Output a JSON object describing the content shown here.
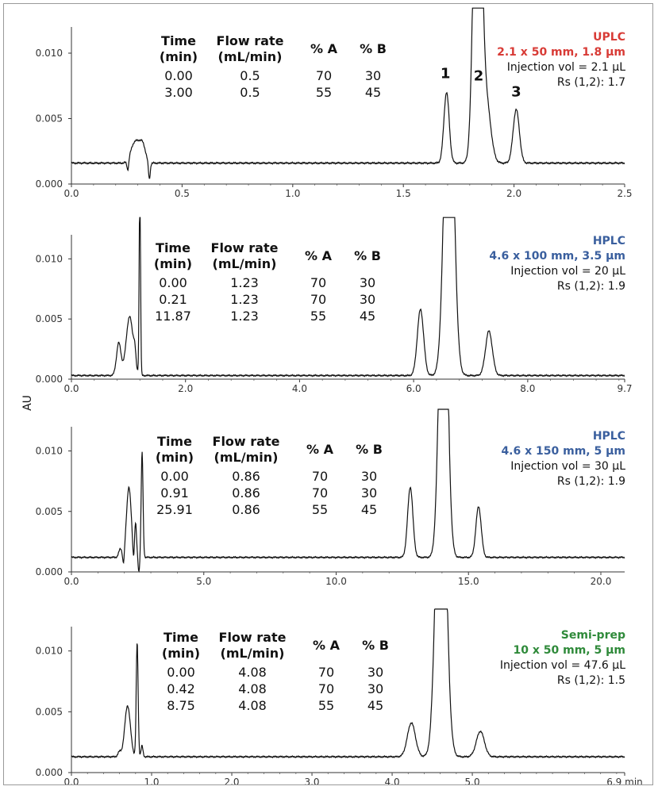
{
  "y_axis_label": "AU",
  "chart_data": [
    {
      "type": "line",
      "column_title": "UPLC",
      "column_spec": "2.1 x 50 mm, 1.8 µm",
      "title_color": "#d83b36",
      "injection": "Injection vol = 2.1 µL",
      "resolution": "Rs (1,2): 1.7",
      "xlim": [
        0,
        2.5
      ],
      "ylim": [
        0,
        0.012
      ],
      "xticks": [
        0,
        0.5,
        1,
        1.5,
        2,
        2.5
      ],
      "xtick_labels": [
        "0.0",
        "0.5",
        "1.0",
        "1.5",
        "2.0",
        "2.5"
      ],
      "yticks": [
        0,
        0.005,
        0.01
      ],
      "ytick_labels": [
        "0.000",
        "0.005",
        "0.010"
      ],
      "gradient_headers": [
        [
          "Time",
          "(min)"
        ],
        [
          "Flow rate",
          "(mL/min)"
        ],
        [
          "% A",
          ""
        ],
        [
          "% B",
          ""
        ]
      ],
      "gradient_rows": [
        [
          "0.00",
          "0.5",
          "70",
          "30"
        ],
        [
          "3.00",
          "0.5",
          "55",
          "45"
        ]
      ],
      "peak_labels": [
        {
          "text": "1",
          "x": 1.69,
          "y": 0.0081
        },
        {
          "text": "2",
          "x": 1.84,
          "y": 0.0079
        },
        {
          "text": "3",
          "x": 2.01,
          "y": 0.0067
        }
      ],
      "baseline": 0.0016,
      "peaks": [
        [
          0.28,
          0.0012,
          0.015
        ],
        [
          0.305,
          0.0012,
          0.015
        ],
        [
          0.325,
          0.001,
          0.012
        ],
        [
          1.695,
          0.0054,
          0.012
        ],
        [
          1.835,
          0.03,
          0.017
        ],
        [
          1.875,
          0.0045,
          0.02
        ],
        [
          2.01,
          0.0041,
          0.014
        ]
      ],
      "dips": [
        [
          0.255,
          -0.0008,
          0.004
        ],
        [
          0.352,
          -0.0013,
          0.004
        ]
      ]
    },
    {
      "type": "line",
      "column_title": "HPLC",
      "column_spec": "4.6 x 100 mm, 3.5 µm",
      "title_color": "#3a5f9e",
      "injection": "Injection vol = 20 µL",
      "resolution": "Rs (1,2): 1.9",
      "xlim": [
        0,
        9.7
      ],
      "ylim": [
        0,
        0.012
      ],
      "xticks": [
        0,
        2,
        4,
        6,
        8,
        9.7
      ],
      "xtick_labels": [
        "0.0",
        "2.0",
        "4.0",
        "6.0",
        "8.0",
        "9.7"
      ],
      "yticks": [
        0,
        0.005,
        0.01
      ],
      "ytick_labels": [
        "0.000",
        "0.005",
        "0.010"
      ],
      "gradient_headers": [
        [
          "Time",
          "(min)"
        ],
        [
          "Flow rate",
          "(mL/min)"
        ],
        [
          "% A",
          ""
        ],
        [
          "% B",
          ""
        ]
      ],
      "gradient_rows": [
        [
          "0.00",
          "1.23",
          "70",
          "30"
        ],
        [
          "0.21",
          "1.23",
          "70",
          "30"
        ],
        [
          "11.87",
          "1.23",
          "55",
          "45"
        ]
      ],
      "peak_labels": [],
      "baseline": 0.0003,
      "peaks": [
        [
          0.83,
          0.0027,
          0.04
        ],
        [
          1.02,
          0.0049,
          0.06
        ],
        [
          1.11,
          0.0012,
          0.02
        ],
        [
          1.2,
          0.016,
          0.012
        ],
        [
          6.12,
          0.0055,
          0.055
        ],
        [
          6.62,
          0.03,
          0.08
        ],
        [
          7.32,
          0.0037,
          0.06
        ]
      ],
      "dips": []
    },
    {
      "type": "line",
      "column_title": "HPLC",
      "column_spec": "4.6 x 150 mm, 5 µm",
      "title_color": "#3a5f9e",
      "injection": "Injection vol = 30 µL",
      "resolution": "Rs (1,2): 1.9",
      "xlim": [
        0,
        20.9
      ],
      "ylim": [
        0,
        0.012
      ],
      "xticks": [
        0,
        5,
        10,
        15,
        20
      ],
      "xtick_labels": [
        "0.0",
        "5.0",
        "10.0",
        "15.0",
        "20.0"
      ],
      "yticks": [
        0,
        0.005,
        0.01
      ],
      "ytick_labels": [
        "0.000",
        "0.005",
        "0.010"
      ],
      "gradient_headers": [
        [
          "Time",
          "(min)"
        ],
        [
          "Flow rate",
          "(mL/min)"
        ],
        [
          "% A",
          ""
        ],
        [
          "% B",
          ""
        ]
      ],
      "gradient_rows": [
        [
          "0.00",
          "0.86",
          "70",
          "30"
        ],
        [
          "0.91",
          "0.86",
          "70",
          "30"
        ],
        [
          "25.91",
          "0.86",
          "55",
          "45"
        ]
      ],
      "peak_labels": [],
      "baseline": 0.0012,
      "peaks": [
        [
          1.85,
          0.0007,
          0.06
        ],
        [
          2.17,
          0.0058,
          0.09
        ],
        [
          2.42,
          0.0028,
          0.04
        ],
        [
          2.67,
          0.0087,
          0.035
        ],
        [
          12.8,
          0.0058,
          0.1
        ],
        [
          14.05,
          0.03,
          0.15
        ],
        [
          15.38,
          0.0042,
          0.1
        ]
      ],
      "dips": [
        [
          1.97,
          -0.001,
          0.03
        ],
        [
          2.35,
          -0.0012,
          0.03
        ],
        [
          2.55,
          -0.0012,
          0.03
        ]
      ]
    },
    {
      "type": "line",
      "column_title": "Semi-prep",
      "column_spec": "10 x 50 mm, 5 µm",
      "title_color": "#2f8a3a",
      "injection": "Injection vol = 47.6 µL",
      "resolution": "Rs (1,2): 1.5",
      "xlim": [
        0,
        6.9
      ],
      "ylim": [
        0,
        0.012
      ],
      "xticks": [
        0,
        1,
        2,
        3,
        4,
        5,
        6.9
      ],
      "xtick_labels": [
        "0.0",
        "1.0",
        "2.0",
        "3.0",
        "4.0",
        "5.0",
        "6.9 min"
      ],
      "yticks": [
        0,
        0.005,
        0.01
      ],
      "ytick_labels": [
        "0.000",
        "0.005",
        "0.010"
      ],
      "gradient_headers": [
        [
          "Time",
          "(min)"
        ],
        [
          "Flow rate",
          "(mL/min)"
        ],
        [
          "% A",
          ""
        ],
        [
          "% B",
          ""
        ]
      ],
      "gradient_rows": [
        [
          "0.00",
          "4.08",
          "70",
          "30"
        ],
        [
          "0.42",
          "4.08",
          "70",
          "30"
        ],
        [
          "8.75",
          "4.08",
          "55",
          "45"
        ]
      ],
      "peak_labels": [],
      "baseline": 0.0013,
      "peaks": [
        [
          0.6,
          0.0004,
          0.02
        ],
        [
          0.7,
          0.0042,
          0.035
        ],
        [
          0.82,
          0.0094,
          0.012
        ],
        [
          0.88,
          0.0009,
          0.012
        ],
        [
          4.24,
          0.0028,
          0.05
        ],
        [
          4.61,
          0.03,
          0.06
        ],
        [
          5.1,
          0.0021,
          0.05
        ]
      ],
      "dips": []
    }
  ]
}
